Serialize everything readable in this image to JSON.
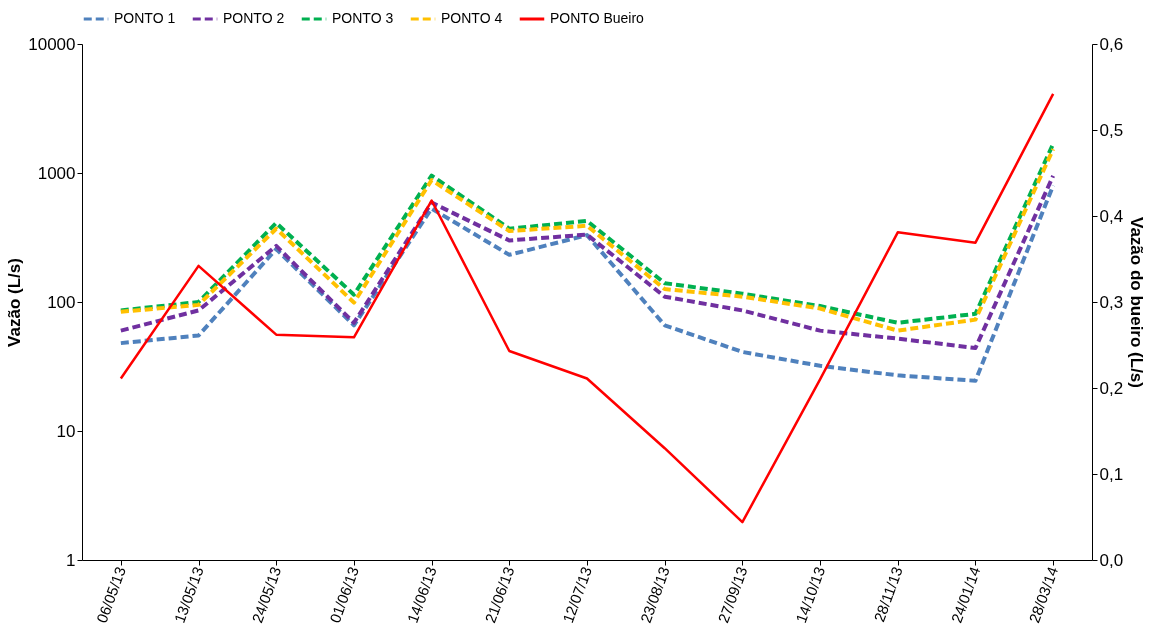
{
  "chart_data": {
    "type": "line",
    "ylabel": "Vazão (L/s)",
    "y2label": "Vazão do bueiro (L/s)",
    "categories": [
      "06/05/13",
      "13/05/13",
      "24/05/13",
      "01/06/13",
      "14/06/13",
      "21/06/13",
      "12/07/13",
      "23/08/13",
      "27/09/13",
      "14/10/13",
      "28/11/13",
      "24/01/14",
      "28/03/14"
    ],
    "series": [
      {
        "name": "PONTO 1",
        "color": "#4f81bd",
        "line_style": "dashed",
        "values": [
          48,
          55,
          257,
          66,
          530,
          232,
          330,
          66,
          41,
          32,
          27,
          24.5,
          800
        ]
      },
      {
        "name": "PONTO 2",
        "color": "#7030a0",
        "line_style": "dashed",
        "values": [
          60,
          86,
          272,
          69,
          590,
          300,
          333,
          110,
          86,
          60,
          52,
          44,
          950
        ]
      },
      {
        "name": "PONTO 3",
        "color": "#00b050",
        "line_style": "dashed",
        "values": [
          86,
          100,
          410,
          114,
          955,
          370,
          425,
          140,
          116,
          93,
          69,
          81,
          1680
        ]
      },
      {
        "name": "PONTO 4",
        "color": "#ffc000",
        "line_style": "dashed",
        "values": [
          84,
          95,
          370,
          99,
          880,
          355,
          390,
          126,
          110,
          89,
          60,
          73,
          1530
        ]
      },
      {
        "name": "PONTO Bueiro",
        "color": "#ff0000",
        "line_style": "solid",
        "axis": "y2",
        "values": [
          0.211,
          0.342,
          0.262,
          0.259,
          0.418,
          0.243,
          0.211,
          0.13,
          0.044,
          0.21,
          0.381,
          0.369,
          0.542
        ]
      }
    ],
    "log": "y",
    "ylim": [
      1,
      10000
    ],
    "yticks": [
      1,
      10,
      100,
      1000,
      10000
    ],
    "y2lim": [
      0,
      0.6
    ],
    "y2ticks": [
      {
        "value": 0,
        "label": "0,0"
      },
      {
        "value": 0.1,
        "label": "0,1"
      },
      {
        "value": 0.2,
        "label": "0,2"
      },
      {
        "value": 0.3,
        "label": "0,3"
      },
      {
        "value": 0.4,
        "label": "0,4"
      },
      {
        "value": 0.5,
        "label": "0,5"
      },
      {
        "value": 0.6,
        "label": "0,6"
      }
    ],
    "grid": false,
    "legend": "top"
  }
}
